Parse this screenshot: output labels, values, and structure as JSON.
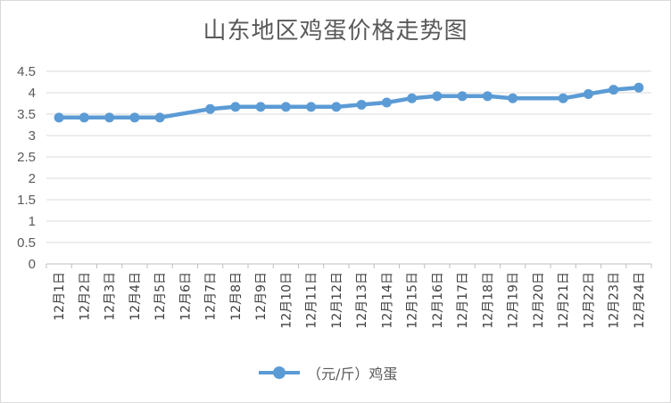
{
  "chart_data": {
    "type": "line",
    "title": "山东地区鸡蛋价格走势图",
    "categories": [
      "12月1日",
      "12月2日",
      "12月3日",
      "12月4日",
      "12月5日",
      "12月6日",
      "12月7日",
      "12月8日",
      "12月9日",
      "12月10日",
      "12月11日",
      "12月12日",
      "12月13日",
      "12月14日",
      "12月15日",
      "12月16日",
      "12月17日",
      "12月18日",
      "12月19日",
      "12月20日",
      "12月21日",
      "12月22日",
      "12月23日",
      "12月24日"
    ],
    "series": [
      {
        "name": "（元/斤）鸡蛋",
        "values": [
          3.42,
          3.42,
          3.42,
          3.42,
          3.42,
          null,
          3.62,
          3.67,
          3.67,
          3.67,
          3.67,
          3.67,
          3.72,
          3.77,
          3.87,
          3.92,
          3.92,
          3.92,
          3.87,
          null,
          3.87,
          3.97,
          4.07,
          4.12
        ]
      }
    ],
    "yticks": [
      "0",
      "0.5",
      "1",
      "1.5",
      "2",
      "2.5",
      "3",
      "3.5",
      "4",
      "4.5"
    ],
    "ylim": [
      0,
      4.5
    ],
    "grid": true,
    "legend": "bottom",
    "color": "#5b9bd5"
  }
}
